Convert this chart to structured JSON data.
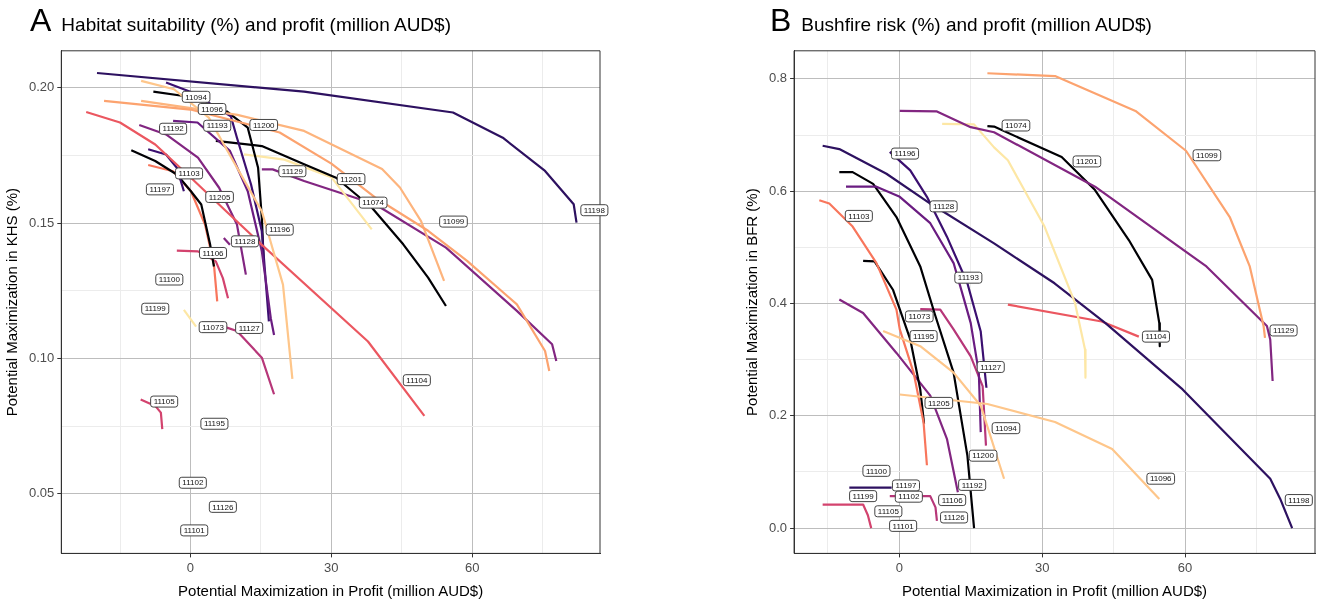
{
  "chart_data": [
    {
      "type": "line",
      "title": "Habitat suitability (%) and profit (million AUD$)",
      "xlabel": "Potential Maximization in Profit (million AUD$)",
      "ylabel": "Potential Maximization in KHS (%)",
      "xlim": [
        -27.5,
        87.2
      ],
      "ylim": [
        0.028,
        0.2137
      ],
      "xticks": [
        {
          "value": -15,
          "label": null
        },
        0,
        {
          "value": 15,
          "label": null
        },
        30,
        {
          "value": 45,
          "label": null
        },
        60,
        {
          "value": 75,
          "label": null
        }
      ],
      "yticks": [
        {
          "value": 0.05,
          "label": "0.05"
        },
        {
          "value": 0.075,
          "label": null
        },
        {
          "value": 0.1,
          "label": "0.10"
        },
        {
          "value": 0.125,
          "label": null
        },
        {
          "value": 0.15,
          "label": "0.15"
        },
        {
          "value": 0.175,
          "label": null
        },
        {
          "value": 0.2,
          "label": "0.20"
        }
      ],
      "grid": true,
      "legend": false,
      "series": [
        {
          "color": "#2d1160",
          "x": [
            -19.9,
            24.2,
            55.9,
            66.5,
            75.5,
            81.6,
            82.2
          ],
          "values": [
            0.2055,
            0.1986,
            0.1909,
            0.1816,
            0.1693,
            0.157,
            0.1502
          ]
        },
        {
          "color": "#fec68a",
          "x": [
            -10.5,
            -3.5,
            3.9,
            9.1,
            15.2,
            19.7,
            21.7
          ],
          "values": [
            0.2026,
            0.1995,
            0.189,
            0.173,
            0.1544,
            0.1273,
            0.0925
          ]
        },
        {
          "color": "#fca36f",
          "x": [
            -18.4,
            0,
            19,
            30,
            39.3,
            50.6,
            58.9,
            69.5,
            75.5,
            76.4
          ],
          "values": [
            0.1952,
            0.192,
            0.1835,
            0.172,
            0.1595,
            0.1472,
            0.1361,
            0.12,
            0.1028,
            0.0954
          ]
        },
        {
          "color": "#fdb47d",
          "x": [
            -10.5,
            10,
            24.2,
            40.8,
            44.6,
            49.1,
            54
          ],
          "values": [
            0.1952,
            0.19,
            0.1841,
            0.17,
            0.1632,
            0.1508,
            0.1287
          ]
        },
        {
          "color": "#eb5760",
          "x": [
            -22.2,
            -15,
            -7.5,
            0.1,
            7.6,
            15.2,
            37.8,
            49.8
          ],
          "values": [
            0.1911,
            0.1872,
            0.1791,
            0.1668,
            0.1544,
            0.142,
            0.1063,
            0.0788
          ]
        },
        {
          "color": "#822681",
          "x": [
            -10.9,
            -5.2,
            1.6,
            6.1,
            9.9,
            11.8
          ],
          "values": [
            0.1863,
            0.1828,
            0.1742,
            0.1631,
            0.1495,
            0.131
          ]
        },
        {
          "color": "#6a1c81",
          "x": [
            -3.7,
            1.5,
            8.4,
            12.2,
            15.2,
            17.1,
            17.8
          ],
          "values": [
            0.1878,
            0.1872,
            0.1767,
            0.1618,
            0.1396,
            0.1149,
            0.1087
          ]
        },
        {
          "color": "#3b0f70",
          "x": [
            -5.2,
            0.1,
            8.6,
            9.9,
            12.9,
            15.2,
            16.7
          ],
          "values": [
            0.202,
            0.1985,
            0.1895,
            0.1816,
            0.1643,
            0.147,
            0.1137
          ]
        },
        {
          "color": "#000004",
          "x": [
            7.6,
            12.2,
            14.4,
            15.2,
            15.6
          ],
          "values": [
            0.1915,
            0.1853,
            0.1705,
            0.152,
            0.1359
          ]
        },
        {
          "color": "#000004",
          "x": [
            -7.9,
            -1.4
          ],
          "values": [
            0.1986,
            0.197
          ]
        },
        {
          "color": "#000004",
          "x": [
            5.4,
            15.2,
            24.2,
            31,
            38.6,
            45.3,
            50.6,
            54.4
          ],
          "values": [
            0.1804,
            0.1785,
            0.1718,
            0.1668,
            0.1558,
            0.1422,
            0.1299,
            0.1194
          ]
        },
        {
          "color": "#fde7a5",
          "x": [
            11.4,
            20,
            30,
            38.6
          ],
          "values": [
            0.1754,
            0.1735,
            0.167,
            0.1477
          ]
        },
        {
          "color": "#822681",
          "x": [
            15.2,
            17.5,
            24.2,
            39.3,
            54.4,
            69.5,
            77,
            77.9
          ],
          "values": [
            0.1699,
            0.1699,
            0.1656,
            0.157,
            0.141,
            0.1176,
            0.1053,
            0.0991
          ]
        },
        {
          "color": "#3b0f70",
          "x": [
            -9,
            -5.2,
            -2.9,
            -1.4
          ],
          "values": [
            0.1773,
            0.1754,
            0.1705,
            0.1618
          ]
        },
        {
          "color": "#000004",
          "x": [
            -12.6,
            -7.5,
            -2.9,
            0.1,
            2.3,
            4.2,
            5
          ],
          "values": [
            0.177,
            0.173,
            0.168,
            0.1618,
            0.1569,
            0.142,
            0.134
          ]
        },
        {
          "color": "#f8765c",
          "x": [
            -9,
            -3.7,
            0.1,
            3.1,
            5,
            5.7
          ],
          "values": [
            0.1715,
            0.1692,
            0.1618,
            0.1495,
            0.1347,
            0.1211
          ]
        },
        {
          "color": "#d3436e",
          "x": [
            -2.9,
            1.6,
            5.4,
            6.9,
            8
          ],
          "values": [
            0.1399,
            0.1396,
            0.1359,
            0.1297,
            0.1223
          ]
        },
        {
          "color": "#822681",
          "x": [
            7.1,
            8.4
          ],
          "values": [
            0.1445,
            0.142
          ]
        },
        {
          "color": "#fde7a5",
          "x": [
            -1.4,
            1.2
          ],
          "values": [
            0.118,
            0.1118
          ]
        },
        {
          "color": "#b73779",
          "x": [
            7.6,
            9.9,
            15.2,
            17.8
          ],
          "values": [
            0.1115,
            0.1102,
            0.1003,
            0.0868
          ]
        },
        {
          "color": "#d3436e",
          "x": [
            -10.6,
            -7.5,
            -6.3,
            -6
          ],
          "values": [
            0.0849,
            0.0825,
            0.08,
            0.0739
          ]
        }
      ],
      "annotations": [
        "A",
        {
          "text": "11094",
          "x": 1.2,
          "y": 0.1967
        },
        {
          "text": "11096",
          "x": 4.6,
          "y": 0.1922
        },
        {
          "text": "11192",
          "x": -3.7,
          "y": 0.1849
        },
        {
          "text": "11193",
          "x": 5.7,
          "y": 0.186
        },
        {
          "text": "11200",
          "x": 15.6,
          "y": 0.1863
        },
        {
          "text": "11103",
          "x": -0.3,
          "y": 0.1684
        },
        {
          "text": "11197",
          "x": -6.5,
          "y": 0.1625
        },
        {
          "text": "11205",
          "x": 6.2,
          "y": 0.1597
        },
        {
          "text": "11129",
          "x": 21.7,
          "y": 0.1692
        },
        {
          "text": "11201",
          "x": 34.2,
          "y": 0.1663
        },
        {
          "text": "11074",
          "x": 38.9,
          "y": 0.1576
        },
        {
          "text": "11099",
          "x": 56,
          "y": 0.1506
        },
        {
          "text": "11196",
          "x": 19,
          "y": 0.1476
        },
        {
          "text": "11128",
          "x": 11.6,
          "y": 0.1433
        },
        {
          "text": "11106",
          "x": 4.8,
          "y": 0.139
        },
        {
          "text": "11100",
          "x": -4.5,
          "y": 0.1292
        },
        {
          "text": "11199",
          "x": -7.5,
          "y": 0.1184
        },
        {
          "text": "11073",
          "x": 4.8,
          "y": 0.1116
        },
        {
          "text": "11127",
          "x": 12.5,
          "y": 0.1113
        },
        {
          "text": "11104",
          "x": 48.2,
          "y": 0.092
        },
        {
          "text": "11105",
          "x": -5.6,
          "y": 0.0841
        },
        {
          "text": "11195",
          "x": 5.1,
          "y": 0.0759
        },
        {
          "text": "11102",
          "x": 0.5,
          "y": 0.0541
        },
        {
          "text": "11126",
          "x": 6.9,
          "y": 0.0452
        },
        {
          "text": "11101",
          "x": 0.8,
          "y": 0.0365
        },
        {
          "text": "11198",
          "x": 86,
          "y": 0.1548
        }
      ]
    },
    {
      "type": "line",
      "title": "Bushfire risk (%) and profit (million AUD$)",
      "xlabel": "Potential Maximization in Profit (million AUD$)",
      "ylabel": "Potential Maximization in BFR (%)",
      "xlim": [
        -22.1,
        87.3
      ],
      "ylim": [
        -0.045,
        0.85
      ],
      "xticks": [
        {
          "value": -15,
          "label": null
        },
        0,
        {
          "value": 15,
          "label": null
        },
        30,
        {
          "value": 45,
          "label": null
        },
        60,
        {
          "value": 75,
          "label": null
        }
      ],
      "yticks": [
        {
          "value": 0,
          "label": "0.0"
        },
        {
          "value": 0.1,
          "label": null
        },
        0.2,
        {
          "value": 0.3,
          "label": null
        },
        0.4,
        {
          "value": 0.5,
          "label": null
        },
        0.6,
        {
          "value": 0.7,
          "label": null
        },
        0.8
      ],
      "grid": true,
      "legend": false,
      "series": [
        {
          "color": "#fca36f",
          "x": [
            18.5,
            32.7,
            49.6,
            60.2,
            69.4,
            73.6,
            76.5,
            76.8
          ],
          "values": [
            0.81,
            0.805,
            0.743,
            0.672,
            0.554,
            0.466,
            0.36,
            0.339
          ]
        },
        {
          "color": "#822681",
          "x": [
            0.1,
            7.9,
            15,
            19.9,
            41.1,
            64.5,
            77.2,
            77.9,
            78.4
          ],
          "values": [
            0.743,
            0.742,
            0.714,
            0.705,
            0.608,
            0.466,
            0.36,
            0.336,
            0.262
          ]
        },
        {
          "color": "#000004",
          "x": [
            18.5,
            19.9,
            34.1,
            41.1,
            48.2,
            53.1,
            54.6,
            54.7
          ],
          "values": [
            0.716,
            0.715,
            0.661,
            0.602,
            0.513,
            0.442,
            0.365,
            0.324
          ]
        },
        {
          "color": "#fde7a5",
          "x": [
            9,
            15.7,
            19.9,
            22.8,
            30.5,
            36.9,
            39,
            39.1
          ],
          "values": [
            0.72,
            0.719,
            0.678,
            0.655,
            0.537,
            0.401,
            0.318,
            0.268
          ]
        },
        {
          "color": "#2d1160",
          "x": [
            -16.1,
            -12.6,
            -2.7,
            6.5,
            19.9,
            32.6,
            43.3,
            59.5,
            77.9,
            80,
            82.5
          ],
          "values": [
            0.681,
            0.675,
            0.631,
            0.578,
            0.507,
            0.436,
            0.365,
            0.247,
            0.088,
            0.052,
            0
          ]
        },
        {
          "color": "#eb5760",
          "x": [
            22.8,
            42.5,
            50.3
          ],
          "values": [
            0.398,
            0.368,
            0.341
          ]
        },
        {
          "color": "#fec68a",
          "x": [
            0.1,
            18.5,
            32.7,
            44.7,
            54.6
          ],
          "values": [
            0.238,
            0.221,
            0.189,
            0.141,
            0.052
          ]
        },
        {
          "color": "#fec68a",
          "x": [
            -3.4,
            4.4,
            11.4,
            17.1,
            22
          ],
          "values": [
            0.351,
            0.324,
            0.277,
            0.218,
            0.088
          ]
        },
        {
          "color": "#3b0f70",
          "x": [
            -2,
            2.3,
            5.8,
            10,
            14.3,
            17.1,
            18.3
          ],
          "values": [
            0.67,
            0.637,
            0.59,
            0.519,
            0.436,
            0.35,
            0.25
          ]
        },
        {
          "color": "#6a1c81",
          "x": [
            -11.2,
            -4.8,
            0.1,
            6.5,
            11.4,
            13.5,
            15,
            16.7,
            17.1
          ],
          "values": [
            0.608,
            0.608,
            0.59,
            0.543,
            0.472,
            0.41,
            0.365,
            0.277,
            0.171
          ]
        },
        {
          "color": "#000004",
          "x": [
            -12.6,
            -9.8,
            -5.5,
            -0.6,
            4.4,
            7.5,
            11.4,
            14.3,
            15.7
          ],
          "values": [
            0.634,
            0.634,
            0.613,
            0.554,
            0.466,
            0.38,
            0.277,
            0.129,
            0
          ]
        },
        {
          "color": "#f8765c",
          "x": [
            -16.8,
            -14.7,
            -9.8,
            -4.8,
            -0.6,
            0.1,
            3,
            5.1,
            5.8
          ],
          "values": [
            0.584,
            0.578,
            0.537,
            0.472,
            0.389,
            0.354,
            0.277,
            0.188,
            0.112
          ]
        },
        {
          "color": "#000004",
          "x": [
            -7.6,
            -5.2,
            -1.3,
            2.3,
            4.4,
            5.2
          ],
          "values": [
            0.476,
            0.475,
            0.424,
            0.336,
            0.247,
            0.186
          ]
        },
        {
          "color": "#822681",
          "x": [
            -12.6,
            -7.6,
            -0.6,
            6.5,
            10,
            12.3
          ],
          "values": [
            0.407,
            0.383,
            0.312,
            0.236,
            0.159,
            0.064
          ]
        },
        {
          "color": "#b73779",
          "x": [
            4.4,
            8.6,
            11.4,
            15,
            17.5,
            18.2
          ],
          "values": [
            0.39,
            0.389,
            0.354,
            0.306,
            0.253,
            0.147
          ]
        },
        {
          "color": "#2d1160",
          "x": [
            -10.5,
            -1.6
          ],
          "values": [
            0.072,
            0.072
          ]
        },
        {
          "color": "#b73779",
          "x": [
            -2,
            6.5,
            7.6,
            7.9
          ],
          "values": [
            0.057,
            0.057,
            0.037,
            0.013
          ]
        },
        {
          "color": "#d3436e",
          "x": [
            -16.1,
            -7.6,
            -6.6,
            -5.9
          ],
          "values": [
            0.042,
            0.042,
            0.023,
            0
          ]
        }
      ],
      "annotations": [
        "B",
        {
          "text": "11099",
          "x": 64.6,
          "y": 0.664
        },
        {
          "text": "11201",
          "x": 39.4,
          "y": 0.653
        },
        {
          "text": "11074",
          "x": 24.5,
          "y": 0.717
        },
        {
          "text": "11196",
          "x": 1.2,
          "y": 0.667
        },
        {
          "text": "11128",
          "x": 9.3,
          "y": 0.573
        },
        {
          "text": "11103",
          "x": -8.5,
          "y": 0.556
        },
        {
          "text": "11193",
          "x": 14.5,
          "y": 0.446
        },
        {
          "text": "11129",
          "x": 80.7,
          "y": 0.352
        },
        {
          "text": "11104",
          "x": 53.9,
          "y": 0.341
        },
        {
          "text": "11073",
          "x": 4.2,
          "y": 0.377
        },
        {
          "text": "11195",
          "x": 5.1,
          "y": 0.342
        },
        {
          "text": "11127",
          "x": 19.2,
          "y": 0.287
        },
        {
          "text": "11205",
          "x": 8.3,
          "y": 0.223
        },
        {
          "text": "11094",
          "x": 22.4,
          "y": 0.178
        },
        {
          "text": "11200",
          "x": 17.6,
          "y": 0.129
        },
        {
          "text": "11096",
          "x": 54.9,
          "y": 0.088
        },
        {
          "text": "11198",
          "x": 83.9,
          "y": 0.05
        },
        {
          "text": "11100",
          "x": -4.8,
          "y": 0.102
        },
        {
          "text": "11197",
          "x": 1.4,
          "y": 0.076
        },
        {
          "text": "11102",
          "x": 2,
          "y": 0.056
        },
        {
          "text": "11199",
          "x": -7.6,
          "y": 0.057
        },
        {
          "text": "11106",
          "x": 11.1,
          "y": 0.05
        },
        {
          "text": "11192",
          "x": 15.3,
          "y": 0.077
        },
        {
          "text": "11105",
          "x": -2.3,
          "y": 0.03
        },
        {
          "text": "11126",
          "x": 11.5,
          "y": 0.019
        },
        {
          "text": "11101",
          "x": 0.8,
          "y": 0.004
        }
      ]
    }
  ]
}
